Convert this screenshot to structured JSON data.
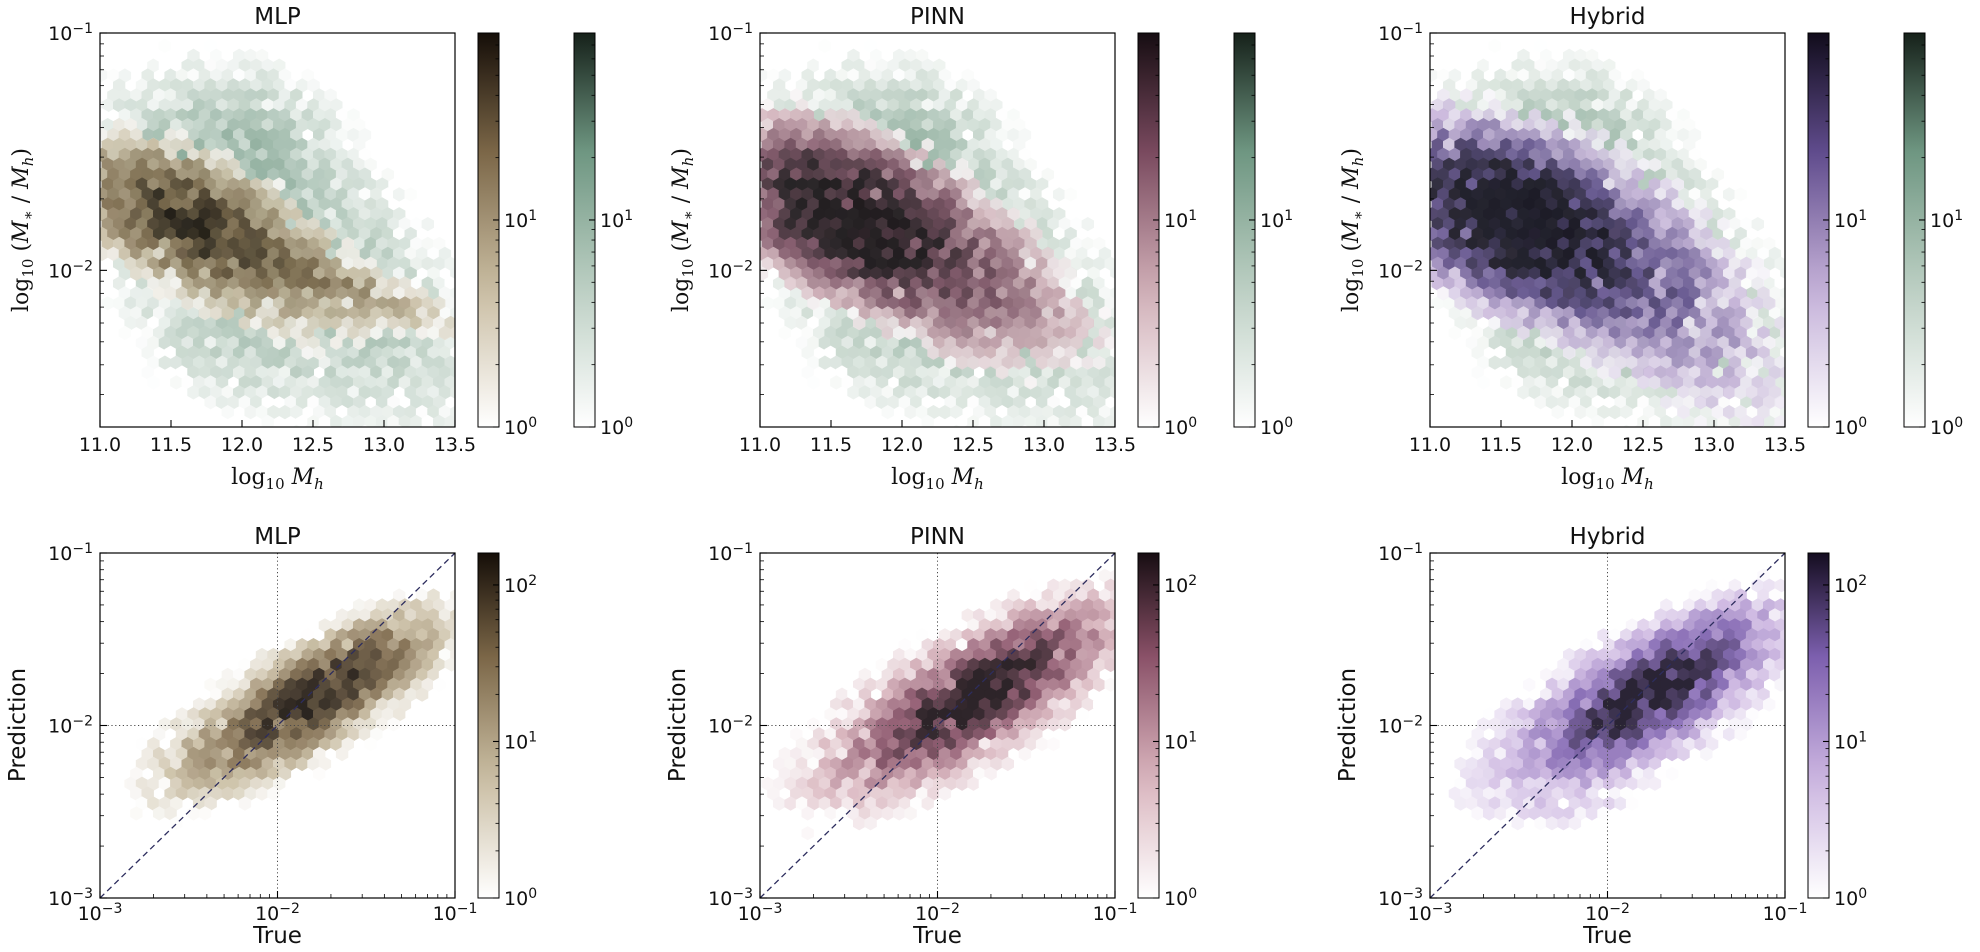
{
  "figure": {
    "kind": "hexbin-grid-2x3",
    "background": "#ffffff",
    "description": "Stellar-to-halo mass ratio hexbin comparison for three emulators (MLP, PINN, Hybrid). Top row: log10(M*/Mh) vs log10 Mh with prediction colormap + green truth colormap. Bottom row: Prediction vs True with identity dashed line and dotted crosshair at 1e-2."
  },
  "styles": {
    "text_color": "#111111",
    "axis_color": "#000000",
    "diagonal_color": "#2d2d5e",
    "crosshair_color": "#4a4a4a",
    "background": "#ffffff"
  },
  "colormaps": {
    "green": {
      "stops": [
        0,
        0.35,
        0.7,
        1
      ],
      "colors": [
        "#ffffff",
        "#bccfc3",
        "#6e9681",
        "#16211a"
      ]
    },
    "brown": {
      "stops": [
        0,
        0.35,
        0.7,
        1
      ],
      "colors": [
        "#ffffff",
        "#c9bda2",
        "#7b6647",
        "#150e08"
      ]
    },
    "plum": {
      "stops": [
        0,
        0.35,
        0.7,
        1
      ],
      "colors": [
        "#ffffff",
        "#cfadb6",
        "#79495e",
        "#160d12"
      ]
    },
    "purple": {
      "stops": [
        0,
        0.35,
        0.7,
        1
      ],
      "colors": [
        "#ffffff",
        "#c4b0d8",
        "#5f4b8c",
        "#110c1b"
      ]
    },
    "rose": {
      "stops": [
        0,
        0.35,
        0.7,
        1
      ],
      "colors": [
        "#ffffff",
        "#d8b3bc",
        "#8a5168",
        "#170d12"
      ]
    },
    "violet": {
      "stops": [
        0,
        0.35,
        0.7,
        1
      ],
      "colors": [
        "#ffffff",
        "#cbb4e0",
        "#7c5fae",
        "#140d20"
      ]
    }
  },
  "component_format": "[center_x, center_y_log10, sigma_major_dex, sigma_minor_dex, angle_deg, peak_count]",
  "chart_data": [
    {
      "id": "top-mlp",
      "row": 1,
      "type": "hexbin",
      "title": "MLP",
      "xlabel": "log10 Mh",
      "ylabel": "log10 (M* / Mh)",
      "xlabel_parts": [
        [
          "log",
          "up"
        ],
        [
          "10",
          "sub"
        ],
        [
          " ",
          "up"
        ],
        [
          "M",
          "it"
        ],
        [
          "h",
          "subit"
        ]
      ],
      "ylabel_parts": [
        [
          "log",
          "up"
        ],
        [
          "10",
          "sub"
        ],
        [
          " (",
          "up"
        ],
        [
          "M",
          "it"
        ],
        [
          "∗",
          "sub"
        ],
        [
          " / ",
          "up"
        ],
        [
          "M",
          "it"
        ],
        [
          "h",
          "subit"
        ],
        [
          ")",
          "up"
        ]
      ],
      "x_axis": {
        "type": "linear",
        "min": 11.0,
        "max": 13.5,
        "tick_values": [
          11.0,
          11.5,
          12.0,
          12.5,
          13.0,
          13.5
        ],
        "tick_labels": [
          "11.0",
          "11.5",
          "12.0",
          "12.5",
          "13.0",
          "13.5"
        ]
      },
      "y_axis": {
        "type": "log",
        "top_exp": -1,
        "bottom_exp": -2.66,
        "major_exps": [
          -1,
          -2
        ]
      },
      "colorbars": [
        {
          "name": "prediction-counts",
          "cmap": "brown",
          "scale": "log",
          "vmin": 1,
          "vmax": 80,
          "major_exps": [
            1,
            0
          ]
        },
        {
          "name": "truth-counts",
          "cmap": "green",
          "scale": "log",
          "vmin": 1,
          "vmax": 80,
          "major_exps": [
            1,
            0
          ]
        }
      ],
      "series": [
        {
          "name": "truth",
          "cmap": "green",
          "alpha": 0.78,
          "seed": 7,
          "threshold": 0.9,
          "hex_radius": 6.6,
          "components": [
            [
              11.75,
              -1.8,
              0.4,
              0.155,
              -18,
              26
            ],
            [
              12.25,
              -1.92,
              0.7,
              0.3,
              -22,
              7
            ],
            [
              12.05,
              -1.47,
              0.33,
              0.17,
              -4,
              7
            ],
            [
              12.85,
              -2.1,
              0.5,
              0.22,
              -25,
              3
            ],
            [
              11.9,
              -2.28,
              0.45,
              0.17,
              -8,
              3.5
            ]
          ]
        },
        {
          "name": "prediction",
          "cmap": "brown",
          "alpha": 0.88,
          "seed": 21,
          "threshold": 1.15,
          "hex_radius": 6.6,
          "components": [
            [
              11.55,
              -1.79,
              0.34,
              0.115,
              -14,
              40
            ],
            [
              11.95,
              -1.88,
              0.45,
              0.14,
              -18,
              16
            ],
            [
              12.55,
              -2.03,
              0.5,
              0.055,
              -12,
              10
            ]
          ]
        }
      ]
    },
    {
      "id": "top-pinn",
      "row": 1,
      "type": "hexbin",
      "title": "PINN",
      "xlabel": "log10 Mh",
      "ylabel": "log10 (M* / Mh)",
      "xlabel_parts": [
        [
          "log",
          "up"
        ],
        [
          "10",
          "sub"
        ],
        [
          " ",
          "up"
        ],
        [
          "M",
          "it"
        ],
        [
          "h",
          "subit"
        ]
      ],
      "ylabel_parts": [
        [
          "log",
          "up"
        ],
        [
          "10",
          "sub"
        ],
        [
          " (",
          "up"
        ],
        [
          "M",
          "it"
        ],
        [
          "∗",
          "sub"
        ],
        [
          " / ",
          "up"
        ],
        [
          "M",
          "it"
        ],
        [
          "h",
          "subit"
        ],
        [
          ")",
          "up"
        ]
      ],
      "x_axis": {
        "type": "linear",
        "min": 11.0,
        "max": 13.5,
        "tick_values": [
          11.0,
          11.5,
          12.0,
          12.5,
          13.0,
          13.5
        ],
        "tick_labels": [
          "11.0",
          "11.5",
          "12.0",
          "12.5",
          "13.0",
          "13.5"
        ]
      },
      "y_axis": {
        "type": "log",
        "top_exp": -1,
        "bottom_exp": -2.66,
        "major_exps": [
          -1,
          -2
        ]
      },
      "colorbars": [
        {
          "name": "prediction-counts",
          "cmap": "plum",
          "scale": "log",
          "vmin": 1,
          "vmax": 80,
          "major_exps": [
            1,
            0
          ]
        },
        {
          "name": "truth-counts",
          "cmap": "green",
          "scale": "log",
          "vmin": 1,
          "vmax": 80,
          "major_exps": [
            1,
            0
          ]
        }
      ],
      "series": [
        {
          "name": "truth",
          "cmap": "green",
          "alpha": 0.78,
          "seed": 7,
          "threshold": 0.9,
          "hex_radius": 6.6,
          "components": [
            [
              11.75,
              -1.8,
              0.4,
              0.155,
              -18,
              26
            ],
            [
              12.25,
              -1.92,
              0.7,
              0.3,
              -22,
              7
            ],
            [
              12.05,
              -1.47,
              0.33,
              0.17,
              -4,
              7
            ],
            [
              12.85,
              -2.1,
              0.5,
              0.22,
              -25,
              3
            ],
            [
              11.9,
              -2.28,
              0.45,
              0.17,
              -8,
              3.5
            ]
          ]
        },
        {
          "name": "prediction",
          "cmap": "plum",
          "alpha": 0.86,
          "seed": 22,
          "threshold": 1.15,
          "hex_radius": 6.6,
          "components": [
            [
              11.6,
              -1.77,
              0.36,
              0.13,
              -12,
              110
            ],
            [
              12.0,
              -1.88,
              0.5,
              0.16,
              -18,
              28
            ],
            [
              12.5,
              -1.97,
              0.5,
              0.13,
              -20,
              6
            ]
          ]
        }
      ]
    },
    {
      "id": "top-hybrid",
      "row": 1,
      "type": "hexbin",
      "title": "Hybrid",
      "xlabel": "log10 Mh",
      "ylabel": "log10 (M* / Mh)",
      "xlabel_parts": [
        [
          "log",
          "up"
        ],
        [
          "10",
          "sub"
        ],
        [
          " ",
          "up"
        ],
        [
          "M",
          "it"
        ],
        [
          "h",
          "subit"
        ]
      ],
      "ylabel_parts": [
        [
          "log",
          "up"
        ],
        [
          "10",
          "sub"
        ],
        [
          " (",
          "up"
        ],
        [
          "M",
          "it"
        ],
        [
          "∗",
          "sub"
        ],
        [
          " / ",
          "up"
        ],
        [
          "M",
          "it"
        ],
        [
          "h",
          "subit"
        ],
        [
          ")",
          "up"
        ]
      ],
      "x_axis": {
        "type": "linear",
        "min": 11.0,
        "max": 13.5,
        "tick_values": [
          11.0,
          11.5,
          12.0,
          12.5,
          13.0,
          13.5
        ],
        "tick_labels": [
          "11.0",
          "11.5",
          "12.0",
          "12.5",
          "13.0",
          "13.5"
        ]
      },
      "y_axis": {
        "type": "log",
        "top_exp": -1,
        "bottom_exp": -2.66,
        "major_exps": [
          -1,
          -2
        ]
      },
      "colorbars": [
        {
          "name": "prediction-counts",
          "cmap": "purple",
          "scale": "log",
          "vmin": 1,
          "vmax": 80,
          "major_exps": [
            1,
            0
          ]
        },
        {
          "name": "truth-counts",
          "cmap": "green",
          "scale": "log",
          "vmin": 1,
          "vmax": 80,
          "major_exps": [
            1,
            0
          ]
        }
      ],
      "series": [
        {
          "name": "truth",
          "cmap": "green",
          "alpha": 0.78,
          "seed": 7,
          "threshold": 0.9,
          "hex_radius": 6.6,
          "components": [
            [
              11.75,
              -1.8,
              0.4,
              0.155,
              -18,
              26
            ],
            [
              12.25,
              -1.92,
              0.7,
              0.3,
              -22,
              7
            ],
            [
              12.05,
              -1.47,
              0.33,
              0.17,
              -4,
              7
            ],
            [
              12.85,
              -2.1,
              0.5,
              0.22,
              -25,
              3
            ],
            [
              11.9,
              -2.28,
              0.45,
              0.17,
              -8,
              3.5
            ]
          ]
        },
        {
          "name": "prediction",
          "cmap": "purple",
          "alpha": 0.86,
          "seed": 23,
          "threshold": 1.15,
          "hex_radius": 6.6,
          "components": [
            [
              11.55,
              -1.79,
              0.36,
              0.14,
              -12,
              140
            ],
            [
              12.0,
              -1.88,
              0.52,
              0.17,
              -16,
              32
            ],
            [
              12.6,
              -2.08,
              0.55,
              0.2,
              -28,
              6
            ]
          ]
        }
      ]
    },
    {
      "id": "bot-mlp",
      "row": 2,
      "type": "hexbin",
      "title": "MLP",
      "xlabel": "True",
      "ylabel": "Prediction",
      "x_axis": {
        "type": "log",
        "left_exp": -3,
        "right_exp": -1,
        "major_exps": [
          -3,
          -2,
          -1
        ]
      },
      "y_axis": {
        "type": "log",
        "top_exp": -1,
        "bottom_exp": -3,
        "major_exps": [
          -1,
          -2,
          -3
        ]
      },
      "reference": {
        "diagonal": true,
        "crosshair_exp": -2
      },
      "colorbars": [
        {
          "name": "counts",
          "cmap": "brown",
          "scale": "log",
          "vmin": 1,
          "vmax": 160,
          "major_exps": [
            2,
            1,
            0
          ]
        }
      ],
      "series": [
        {
          "name": "prediction-vs-true",
          "cmap": "brown",
          "alpha": 0.9,
          "seed": 31,
          "threshold": 1.0,
          "hex_radius": 6.6,
          "components": [
            [
              -1.8,
              -1.84,
              0.3,
              0.095,
              33,
              120
            ],
            [
              -1.85,
              -1.87,
              0.5,
              0.165,
              30,
              12
            ],
            [
              -2.4,
              -2.1,
              0.14,
              0.07,
              20,
              2.2
            ]
          ]
        }
      ]
    },
    {
      "id": "bot-pinn",
      "row": 2,
      "type": "hexbin",
      "title": "PINN",
      "xlabel": "True",
      "ylabel": "Prediction",
      "x_axis": {
        "type": "log",
        "left_exp": -3,
        "right_exp": -1,
        "major_exps": [
          -3,
          -2,
          -1
        ]
      },
      "y_axis": {
        "type": "log",
        "top_exp": -1,
        "bottom_exp": -3,
        "major_exps": [
          -1,
          -2,
          -3
        ]
      },
      "reference": {
        "diagonal": true,
        "crosshair_exp": -2
      },
      "colorbars": [
        {
          "name": "counts",
          "cmap": "rose",
          "scale": "log",
          "vmin": 1,
          "vmax": 160,
          "major_exps": [
            2,
            1,
            0
          ]
        }
      ],
      "series": [
        {
          "name": "prediction-vs-true",
          "cmap": "rose",
          "alpha": 0.9,
          "seed": 32,
          "threshold": 1.0,
          "hex_radius": 6.6,
          "components": [
            [
              -1.78,
              -1.83,
              0.32,
              0.105,
              32,
              160
            ],
            [
              -1.85,
              -1.87,
              0.52,
              0.19,
              30,
              15
            ],
            [
              -2.35,
              -2.2,
              0.18,
              0.09,
              25,
              2.0
            ]
          ]
        }
      ]
    },
    {
      "id": "bot-hybrid",
      "row": 2,
      "type": "hexbin",
      "title": "Hybrid",
      "xlabel": "True",
      "ylabel": "Prediction",
      "x_axis": {
        "type": "log",
        "left_exp": -3,
        "right_exp": -1,
        "major_exps": [
          -3,
          -2,
          -1
        ]
      },
      "y_axis": {
        "type": "log",
        "top_exp": -1,
        "bottom_exp": -3,
        "major_exps": [
          -1,
          -2,
          -3
        ]
      },
      "reference": {
        "diagonal": true,
        "crosshair_exp": -2
      },
      "colorbars": [
        {
          "name": "counts",
          "cmap": "violet",
          "scale": "log",
          "vmin": 1,
          "vmax": 160,
          "major_exps": [
            2,
            1,
            0
          ]
        }
      ],
      "series": [
        {
          "name": "prediction-vs-true",
          "cmap": "violet",
          "alpha": 0.9,
          "seed": 33,
          "threshold": 1.0,
          "hex_radius": 6.6,
          "components": [
            [
              -1.76,
              -1.82,
              0.3,
              0.11,
              33,
              160
            ],
            [
              -1.85,
              -1.88,
              0.5,
              0.2,
              30,
              13
            ],
            [
              -2.15,
              -2.42,
              0.16,
              0.1,
              20,
              2.0
            ]
          ]
        }
      ]
    }
  ]
}
